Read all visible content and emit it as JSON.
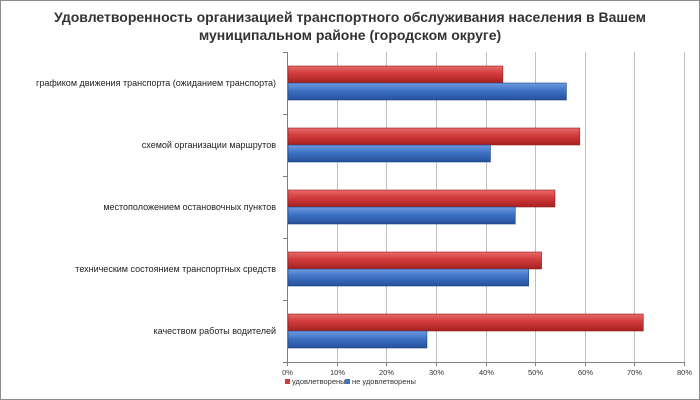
{
  "chart_data": {
    "type": "bar",
    "orientation": "horizontal",
    "title_lines": [
      "Удовлетворенность организацией транспортного обслуживания населения в Вашем",
      "муниципальном районе (городском округе)"
    ],
    "categories": [
      "графиком движения транспорта (ожиданием транспорта)",
      "схемой организации маршрутов",
      "местоположением остановочных пунктов",
      "техническим состоянием транспортных средств",
      "качеством работы водителей"
    ],
    "series": [
      {
        "name": "удовлетворены",
        "color": "#d13b3b",
        "values": [
          43.5,
          59,
          54,
          51.3,
          71.8
        ]
      },
      {
        "name": "не удовлетворены",
        "color": "#3d72c4",
        "values": [
          56.3,
          41,
          46,
          48.7,
          28.2
        ]
      }
    ],
    "xlim": [
      0,
      80
    ],
    "xticks": [
      "0%",
      "10%",
      "20%",
      "30%",
      "40%",
      "50%",
      "60%",
      "70%",
      "80%"
    ],
    "grid": true,
    "legend": "bottom"
  }
}
